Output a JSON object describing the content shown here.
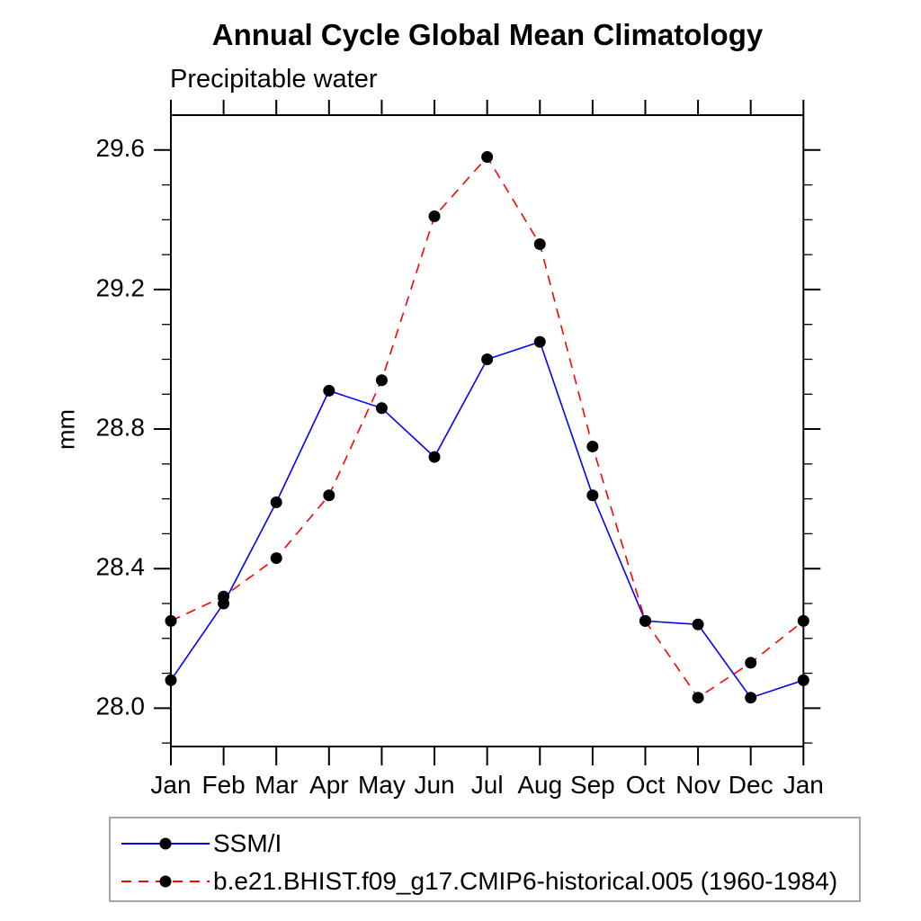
{
  "title": "Annual Cycle Global Mean Climatology",
  "subtitle": "Precipitable water",
  "ylabel": "mm",
  "colors": {
    "obs_line": "#0000ff",
    "model_line": "#ff0000",
    "marker": "#000000",
    "frame": "#000000",
    "legend_border": "#a6a6a6"
  },
  "legend": {
    "entries": [
      {
        "label": "SSM/I",
        "color": "#0000ff",
        "style": "solid"
      },
      {
        "label": "b.e21.BHIST.f09_g17.CMIP6-historical.005 (1960-1984)",
        "color": "#ff0000",
        "style": "dashed"
      }
    ]
  },
  "chart_data": {
    "type": "line",
    "title": "Annual Cycle Global Mean Climatology",
    "subtitle": "Precipitable water",
    "xlabel": "",
    "ylabel": "mm",
    "categories": [
      "Jan",
      "Feb",
      "Mar",
      "Apr",
      "May",
      "Jun",
      "Jul",
      "Aug",
      "Sep",
      "Oct",
      "Nov",
      "Dec",
      "Jan"
    ],
    "y_major_ticks": [
      28.0,
      28.4,
      28.8,
      29.2,
      29.6
    ],
    "y_minor_step": 0.1,
    "ylim": [
      27.89,
      29.7
    ],
    "grid": false,
    "legend_position": "bottom-left-box",
    "series": [
      {
        "name": "SSM/I",
        "color": "#0000ff",
        "style": "solid",
        "marker": "filled-circle",
        "marker_color": "#000000",
        "values": [
          28.08,
          28.3,
          28.59,
          28.91,
          28.86,
          28.72,
          29.0,
          29.05,
          28.61,
          28.25,
          28.24,
          28.03,
          28.08
        ]
      },
      {
        "name": "b.e21.BHIST.f09_g17.CMIP6-historical.005 (1960-1984)",
        "color": "#ff0000",
        "style": "dashed",
        "marker": "filled-circle",
        "marker_color": "#000000",
        "values": [
          28.25,
          28.32,
          28.43,
          28.61,
          28.94,
          29.41,
          29.58,
          29.33,
          28.75,
          28.25,
          28.03,
          28.13,
          28.25
        ]
      }
    ]
  }
}
